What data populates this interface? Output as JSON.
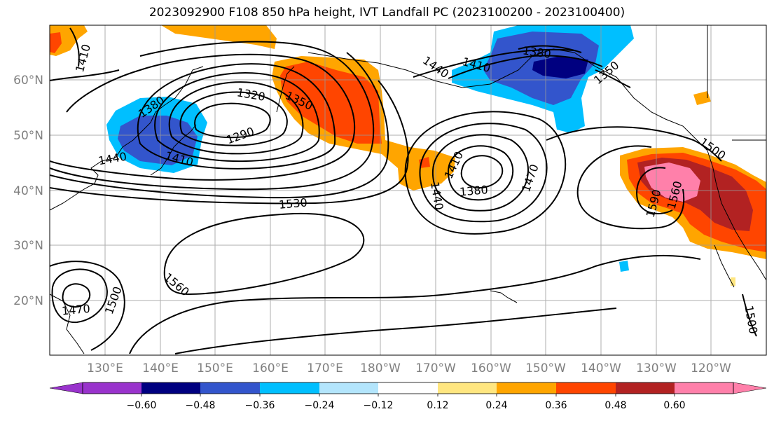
{
  "title": "2023092900 F108 850 hPa height, IVT Landfall PC (2023100200 - 2023100400)",
  "colors": {
    "c1": "#9933cc",
    "c2": "#000080",
    "c3": "#3355cc",
    "c4": "#00bfff",
    "c5": "#b3e5fc",
    "c6": "#ffffff",
    "c7": "#ffe680",
    "c8": "#ffa500",
    "c9": "#ff4500",
    "c10": "#b22222",
    "c11": "#ff80aa"
  },
  "lat_labels": [
    "60°N",
    "50°N",
    "40°N",
    "30°N",
    "20°N"
  ],
  "lon_labels": [
    "130°E",
    "140°E",
    "150°E",
    "160°E",
    "170°E",
    "180°W",
    "170°W",
    "160°W",
    "150°W",
    "140°W",
    "130°W",
    "120°W"
  ],
  "contour_labels": {
    "l1410a": "1410",
    "l1410b": "1410",
    "l1410c": "1410",
    "l1410d": "1410",
    "l1410e": "1410",
    "l1380a": "1380",
    "l1380b": "1380",
    "l1380c": "1380",
    "l1350a": "1350",
    "l1350b": "1350",
    "l1440a": "1440",
    "l1440b": "1440",
    "l1320": "1320",
    "l1290": "1290",
    "l1530": "1530",
    "l1470a": "1470",
    "l1470b": "1470",
    "l1500a": "1500",
    "l1500b": "1500",
    "l1500c": "1500",
    "l1560a": "1560",
    "l1560b": "1560",
    "l1590": "1590"
  },
  "colorbar": {
    "ticks": [
      "−0.60",
      "−0.48",
      "−0.36",
      "−0.24",
      "−0.12",
      "0.12",
      "0.24",
      "0.36",
      "0.48",
      "0.60"
    ],
    "levels": [
      -0.6,
      -0.48,
      -0.36,
      -0.24,
      -0.12,
      0.12,
      0.24,
      0.36,
      0.48,
      0.6
    ]
  }
}
